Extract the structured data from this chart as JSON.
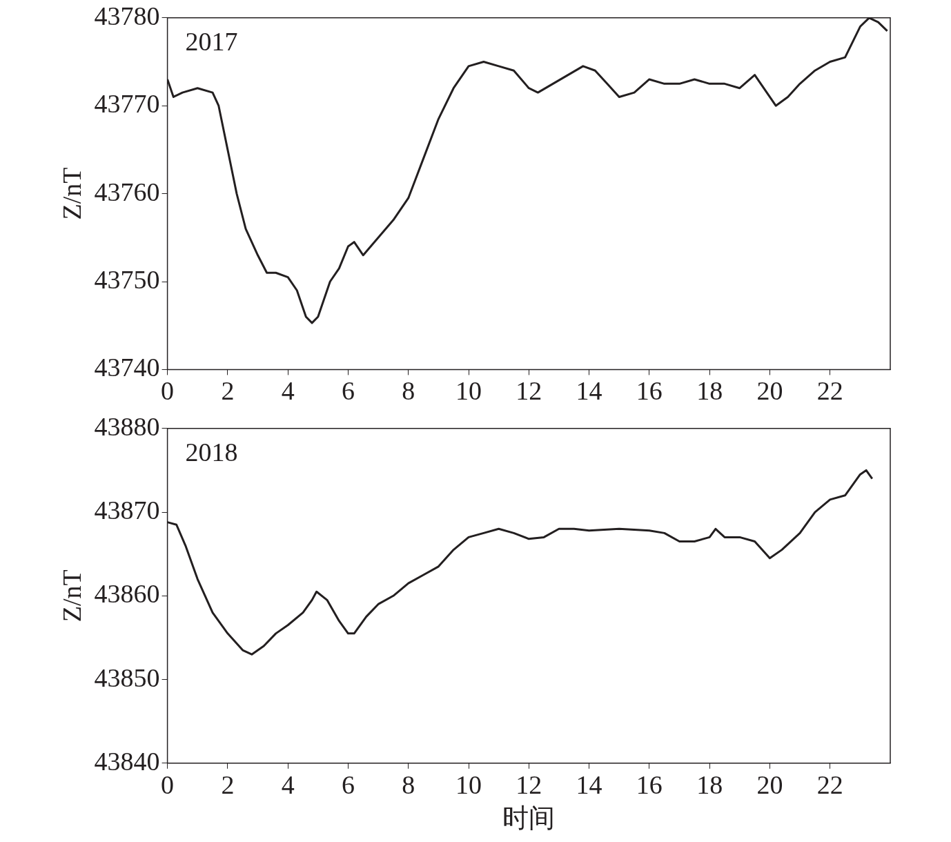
{
  "chart_data": [
    {
      "type": "line",
      "ylabel": "Z/nT",
      "annotations": [
        "2017"
      ],
      "xlim": [
        0,
        24
      ],
      "xticks": [
        0,
        2,
        4,
        6,
        8,
        10,
        12,
        14,
        16,
        18,
        20,
        22
      ],
      "ylim": [
        43740,
        43780
      ],
      "yticks": [
        43740,
        43750,
        43760,
        43770,
        43780
      ],
      "grid": false,
      "legend": false,
      "marker": "none",
      "line_style": "solid",
      "series": [
        {
          "color": "#231f20",
          "x": [
            0,
            0.2,
            0.5,
            1,
            1.5,
            1.7,
            2,
            2.3,
            2.6,
            3,
            3.3,
            3.6,
            4,
            4.3,
            4.6,
            4.8,
            5,
            5.2,
            5.4,
            5.7,
            6,
            6.2,
            6.5,
            7,
            7.5,
            8,
            8.5,
            9,
            9.5,
            10,
            10.5,
            11,
            11.5,
            12,
            12.3,
            12.8,
            13.3,
            13.8,
            14.2,
            14.6,
            15,
            15.5,
            16,
            16.5,
            17,
            17.5,
            18,
            18.5,
            19,
            19.5,
            20,
            20.2,
            20.6,
            21,
            21.5,
            22,
            22.5,
            23,
            23.3,
            23.6,
            23.9
          ],
          "values": [
            43773,
            43771,
            43771.5,
            43772,
            43771.5,
            43770,
            43765,
            43760,
            43756,
            43753,
            43751,
            43751,
            43750.5,
            43749,
            43746,
            43745.3,
            43746,
            43748,
            43750,
            43751.5,
            43754,
            43754.5,
            43753,
            43755,
            43757,
            43759.5,
            43764,
            43768.5,
            43772,
            43774.5,
            43775,
            43774.5,
            43774,
            43772,
            43771.5,
            43772.5,
            43773.5,
            43774.5,
            43774,
            43772.5,
            43771,
            43771.5,
            43773,
            43772.5,
            43772.5,
            43773,
            43772.5,
            43772.5,
            43772,
            43773.5,
            43771,
            43770,
            43771,
            43772.5,
            43774,
            43775,
            43775.5,
            43779,
            43780,
            43779.5,
            43778.5
          ]
        }
      ]
    },
    {
      "type": "line",
      "xlabel": "时间",
      "ylabel": "Z/nT",
      "annotations": [
        "2018"
      ],
      "xlim": [
        0,
        24
      ],
      "xticks": [
        0,
        2,
        4,
        6,
        8,
        10,
        12,
        14,
        16,
        18,
        20,
        22
      ],
      "ylim": [
        43840,
        43880
      ],
      "yticks": [
        43840,
        43850,
        43860,
        43870,
        43880
      ],
      "grid": false,
      "legend": false,
      "marker": "none",
      "line_style": "solid",
      "series": [
        {
          "color": "#231f20",
          "x": [
            0,
            0.3,
            0.6,
            1,
            1.5,
            2,
            2.5,
            2.8,
            3.2,
            3.6,
            4,
            4.5,
            4.8,
            4.95,
            5.3,
            5.7,
            6,
            6.2,
            6.6,
            7,
            7.5,
            8,
            8.5,
            9,
            9.5,
            10,
            10.5,
            11,
            11.5,
            12,
            12.5,
            13,
            13.5,
            14,
            15,
            16,
            16.5,
            17,
            17.5,
            18,
            18.2,
            18.5,
            19,
            19.5,
            20,
            20.4,
            21,
            21.5,
            22,
            22.5,
            23,
            23.2,
            23.4
          ],
          "values": [
            43868.8,
            43868.5,
            43866,
            43862,
            43858,
            43855.5,
            43853.5,
            43853,
            43854,
            43855.5,
            43856.5,
            43858,
            43859.5,
            43860.5,
            43859.5,
            43857,
            43855.5,
            43855.5,
            43857.5,
            43859,
            43860,
            43861.5,
            43862.5,
            43863.5,
            43865.5,
            43867,
            43867.5,
            43868,
            43867.5,
            43866.8,
            43867,
            43868,
            43868,
            43867.8,
            43868,
            43867.8,
            43867.5,
            43866.5,
            43866.5,
            43867,
            43868,
            43867,
            43867,
            43866.5,
            43864.5,
            43865.5,
            43867.5,
            43870,
            43871.5,
            43872,
            43874.5,
            43875,
            43874
          ]
        }
      ]
    }
  ]
}
